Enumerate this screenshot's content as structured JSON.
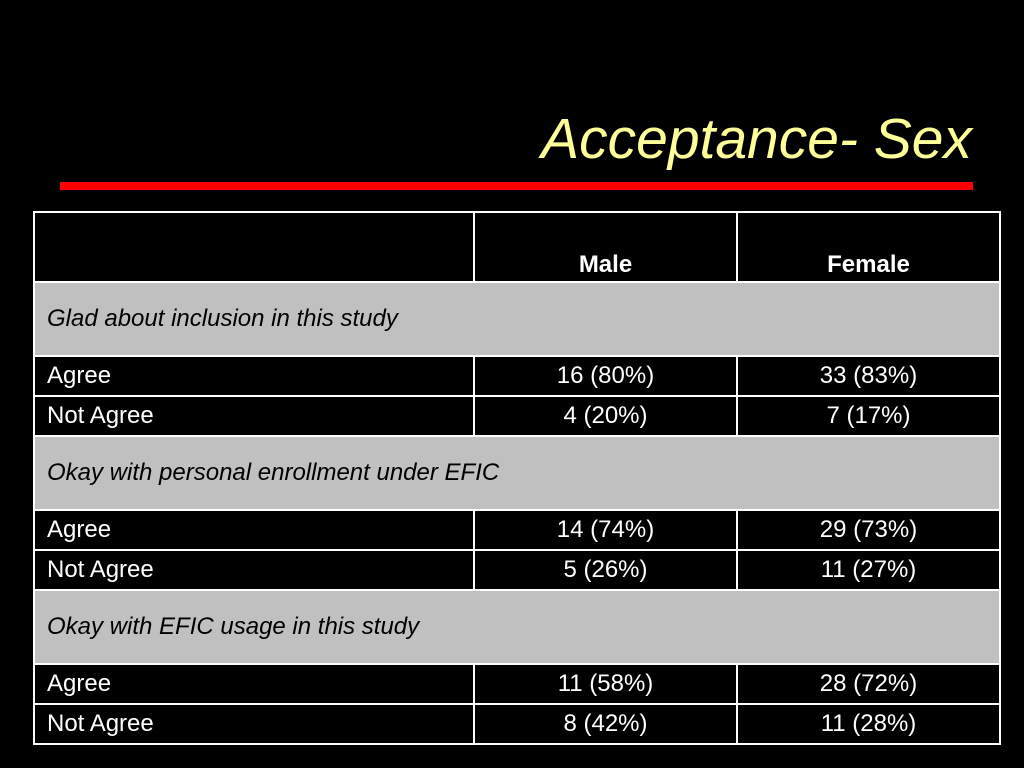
{
  "slide": {
    "title": "Acceptance- Sex"
  },
  "colors": {
    "background": "#000000",
    "title": "#ffff99",
    "rule": "#ff0000",
    "section_fill": "#c0c0c0",
    "text": "#ffffff"
  },
  "table": {
    "headers": [
      "",
      "Male",
      "Female"
    ],
    "sections": [
      {
        "title": "Glad about inclusion in this study",
        "rows": [
          {
            "label": "Agree",
            "male": "16 (80%)",
            "female": "33 (83%)"
          },
          {
            "label": "Not Agree",
            "male": "4 (20%)",
            "female": "7 (17%)"
          }
        ]
      },
      {
        "title": "Okay with personal enrollment under EFIC",
        "rows": [
          {
            "label": "Agree",
            "male": "14 (74%)",
            "female": "29 (73%)"
          },
          {
            "label": "Not Agree",
            "male": "5 (26%)",
            "female": "11 (27%)"
          }
        ]
      },
      {
        "title": "Okay with EFIC usage in this study",
        "rows": [
          {
            "label": "Agree",
            "male": "11 (58%)",
            "female": "28 (72%)"
          },
          {
            "label": "Not Agree",
            "male": "8 (42%)",
            "female": "11 (28%)"
          }
        ]
      }
    ]
  }
}
